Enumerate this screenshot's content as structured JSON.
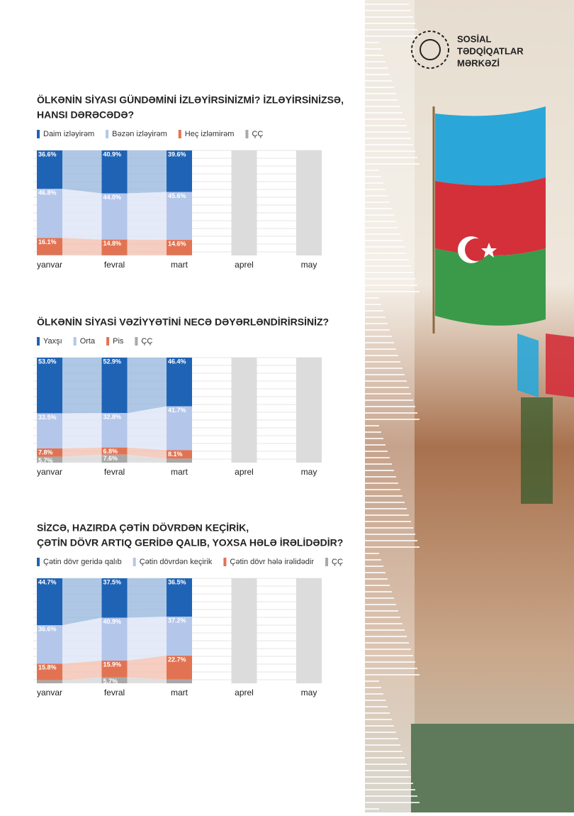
{
  "logo": [
    "SOSİAL",
    "TƏDQİQATLAR",
    "MƏRKƏZİ"
  ],
  "chart_data": [
    {
      "type": "bar",
      "stacked": true,
      "title": [
        "ÖLKƏNİN SİYASI GÜNDƏMİNİ İZLƏYİRSİNİZMİ? İZLƏYİRSİNİZSƏ,",
        "HANSI DƏRƏCƏDƏ?"
      ],
      "categories": [
        "yanvar",
        "fevral",
        "mart",
        "aprel",
        "may"
      ],
      "series": [
        {
          "name": "Daim izləyirəm",
          "color": "#1f63b5",
          "values": [
            36.6,
            40.9,
            39.6,
            null,
            null
          ],
          "value_labels": [
            "36.6%",
            "40.9%",
            "39.6%",
            null,
            null
          ]
        },
        {
          "name": "Bəzən izləyirəm",
          "color": "#b4c6ea",
          "values": [
            46.8,
            44.0,
            45.6,
            null,
            null
          ],
          "value_labels": [
            "46.8%",
            "44.0%",
            "45.6%",
            null,
            null
          ]
        },
        {
          "name": "Heç izləmirəm",
          "color": "#e27352",
          "values": [
            16.1,
            14.8,
            14.6,
            null,
            null
          ],
          "value_labels": [
            "16.1%",
            "14.8%",
            "14.6%",
            null,
            null
          ]
        },
        {
          "name": "ÇÇ",
          "color": "#a9a9a9",
          "values": [
            0.5,
            0.3,
            0.2,
            null,
            null
          ],
          "value_labels": [
            null,
            null,
            null,
            null,
            null
          ]
        }
      ]
    },
    {
      "type": "bar",
      "stacked": true,
      "title": [
        "ÖLKƏNİN SİYASİ VƏZİYYƏTİNİ NECƏ DƏYƏRLƏNDİRİRSİNİZ?"
      ],
      "categories": [
        "yanvar",
        "fevral",
        "mart",
        "aprel",
        "may"
      ],
      "series": [
        {
          "name": "Yaxşı",
          "color": "#1f63b5",
          "values": [
            53.0,
            52.9,
            46.4,
            null,
            null
          ],
          "value_labels": [
            "53.0%",
            "52.9%",
            "46.4%",
            null,
            null
          ]
        },
        {
          "name": "Orta",
          "color": "#b4c6ea",
          "values": [
            33.5,
            32.8,
            41.7,
            null,
            null
          ],
          "value_labels": [
            "33.5%",
            "32.8%",
            "41.7%",
            null,
            null
          ]
        },
        {
          "name": "Pis",
          "color": "#e27352",
          "values": [
            7.8,
            6.8,
            8.1,
            null,
            null
          ],
          "value_labels": [
            "7.8%",
            "6.8%",
            "8.1%",
            null,
            null
          ]
        },
        {
          "name": "ÇÇ",
          "color": "#a9a9a9",
          "values": [
            5.7,
            7.6,
            3.8,
            null,
            null
          ],
          "value_labels": [
            "5.7%",
            "7.6%",
            null,
            null,
            null
          ]
        }
      ]
    },
    {
      "type": "bar",
      "stacked": true,
      "title": [
        "SİZCƏ, HAZIRDA ÇƏTİN DÖVRDƏN KEÇİRİK,",
        "ÇƏTİN DÖVR ARTIQ GERİDƏ QALIB, YOXSA HƏLƏ İRƏLİDƏDİR?"
      ],
      "categories": [
        "yanvar",
        "fevral",
        "mart",
        "aprel",
        "may"
      ],
      "series": [
        {
          "name": "Çətin dövr geridə qalıb",
          "color": "#1f63b5",
          "values": [
            44.7,
            37.5,
            36.5,
            null,
            null
          ],
          "value_labels": [
            "44.7%",
            "37.5%",
            "36.5%",
            null,
            null
          ]
        },
        {
          "name": "Çətin dövrdən keçirik",
          "color": "#b4c6ea",
          "values": [
            36.6,
            40.9,
            37.2,
            null,
            null
          ],
          "value_labels": [
            "36.6%",
            "40.9%",
            "37.2%",
            null,
            null
          ]
        },
        {
          "name": "Çətin dövr hələ irəlidədir",
          "color": "#e27352",
          "values": [
            15.8,
            15.9,
            22.7,
            null,
            null
          ],
          "value_labels": [
            "15.8%",
            "15.9%",
            "22.7%",
            null,
            null
          ]
        },
        {
          "name": "ÇÇ",
          "color": "#a9a9a9",
          "values": [
            2.9,
            5.7,
            3.6,
            null,
            null
          ],
          "value_labels": [
            null,
            "5.7%",
            null,
            null,
            null
          ]
        }
      ]
    }
  ]
}
